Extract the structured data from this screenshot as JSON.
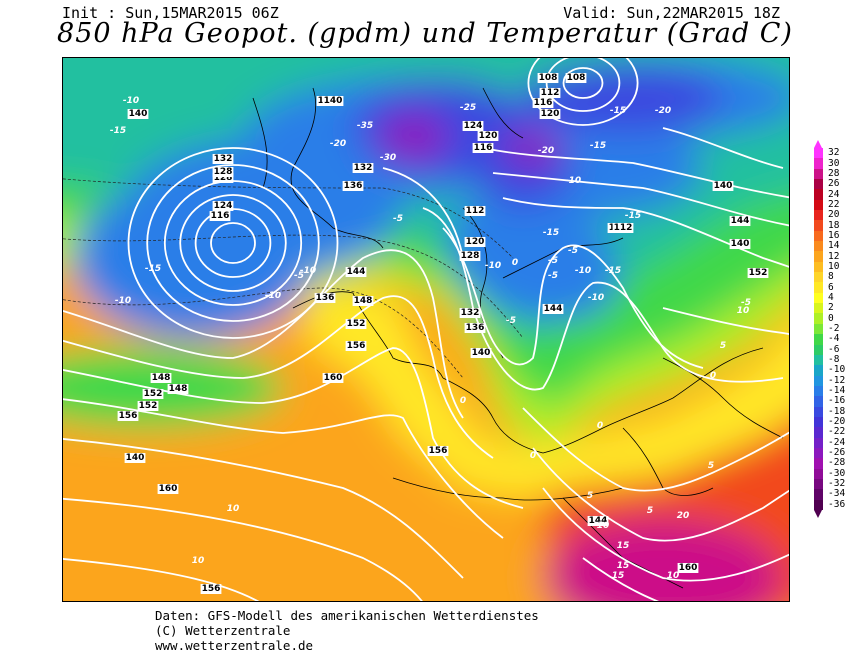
{
  "header": {
    "init": "Init : Sun,15MAR2015 06Z",
    "valid": "Valid: Sun,22MAR2015 18Z",
    "title": "850 hPa Geopot. (gpdm) und Temperatur (Grad C)"
  },
  "footer": {
    "line1": "Daten: GFS-Modell des amerikanischen Wetterdienstes",
    "line2": "(C) Wetterzentrale",
    "line3": "www.wetterzentrale.de"
  },
  "colorbar": {
    "labels": [
      "32",
      "30",
      "28",
      "26",
      "24",
      "22",
      "20",
      "18",
      "16",
      "14",
      "12",
      "10",
      "8",
      "6",
      "4",
      "2",
      "0",
      "-2",
      "-4",
      "-6",
      "-8",
      "-10",
      "-12",
      "-14",
      "-16",
      "-18",
      "-20",
      "-22",
      "-24",
      "-26",
      "-28",
      "-30",
      "-32",
      "-34",
      "-36"
    ],
    "colors": [
      "#ff33ff",
      "#ee22cc",
      "#cc1188",
      "#aa0044",
      "#bb0022",
      "#d40a14",
      "#e8241e",
      "#f24a1e",
      "#f86a1e",
      "#fa8a1e",
      "#fca51e",
      "#fdbd22",
      "#fed52a",
      "#ffe826",
      "#ffff20",
      "#d8f51e",
      "#aef028",
      "#7ce838",
      "#40d848",
      "#2ecc66",
      "#22c0a0",
      "#1aa6c8",
      "#2196e0",
      "#2a7ee8",
      "#3264e6",
      "#3a4ae0",
      "#4234d8",
      "#5a28d0",
      "#7420c8",
      "#8c18be",
      "#a010b0",
      "#900c98",
      "#780880",
      "#600468",
      "#500050"
    ]
  },
  "geopotential_labels": [
    "108",
    "112",
    "116",
    "120",
    "124",
    "128",
    "132",
    "136",
    "140",
    "144",
    "148",
    "152",
    "156",
    "160"
  ],
  "temperature_labels": [
    "-35",
    "-30",
    "-25",
    "-20",
    "-15",
    "-10",
    "-5",
    "0",
    "5",
    "10",
    "15",
    "20"
  ],
  "map": {
    "colors": {
      "cold_core": "#8c18be",
      "very_cold": "#3a4ae0",
      "cold": "#2a7ee8",
      "cool": "#22c0a0",
      "mild": "#40d848",
      "neutral": "#aef028",
      "warm": "#ffe826",
      "warmer": "#fca51e",
      "hot": "#f24a1e",
      "hottest": "#cc1188"
    }
  }
}
